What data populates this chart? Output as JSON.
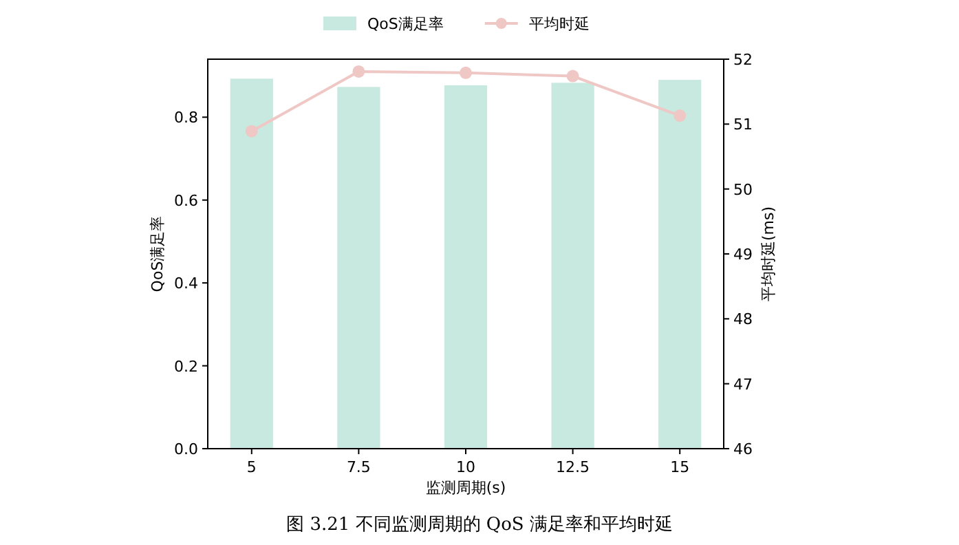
{
  "chart_data": {
    "type": "bar",
    "categories": [
      "5",
      "7.5",
      "10",
      "12.5",
      "15"
    ],
    "xlabel": "监测周期(s)",
    "ylabel": "QoS满足率",
    "y2label": "平均时延(ms)",
    "ylim": [
      0,
      0.94
    ],
    "yticks": [
      {
        "value": 0,
        "label": "0.0"
      },
      {
        "value": 0.2,
        "label": "0.2"
      },
      {
        "value": 0.4,
        "label": "0.4"
      },
      {
        "value": 0.6,
        "label": "0.6"
      },
      {
        "value": 0.8,
        "label": "0.8"
      }
    ],
    "y2lim": [
      46,
      52
    ],
    "y2ticks": [
      46,
      47,
      48,
      49,
      50,
      51,
      52
    ],
    "legend": "top",
    "marker": "circle",
    "annotations": [
      "图 3.21 不同监测周期的 QoS 满足率和平均时延"
    ],
    "series": [
      {
        "name": "QoS满足率",
        "color": "#c8e9df",
        "values": [
          0.893,
          0.873,
          0.877,
          0.883,
          0.89
        ]
      },
      {
        "name": "平均时延",
        "type": "line",
        "axis": "y2",
        "color": "#efc7c5",
        "values": [
          50.89,
          51.81,
          51.79,
          51.74,
          51.13
        ]
      }
    ]
  }
}
